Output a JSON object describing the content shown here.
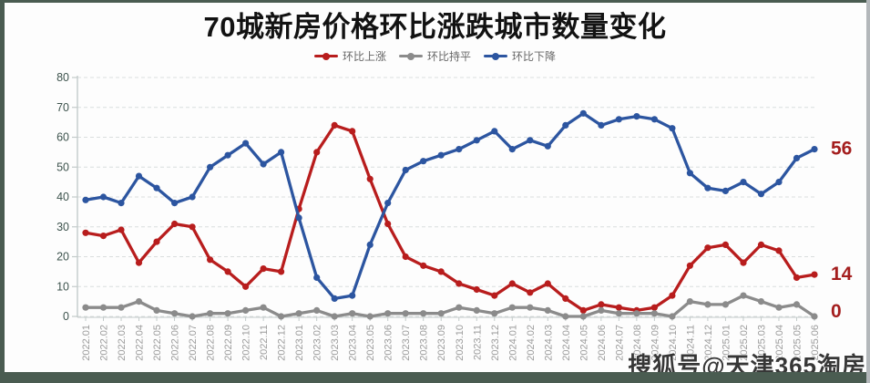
{
  "title": "70城新房价格环比涨跌城市数量变化",
  "watermark": "搜狐号@天津365淘房",
  "colors": {
    "frame_green": "#4a5c51",
    "frame_right_gray": "#b3b7ba",
    "grid": "#dadede",
    "axis": "#c3cbca",
    "y_label": "#3d534d",
    "x_label": "#9b9b9b",
    "end_label": "#a41e1e",
    "title_text": "#121212",
    "legend_text": "#676767"
  },
  "chart_data": {
    "type": "line",
    "title": "70城新房价格环比涨跌城市数量变化",
    "xlabel": "",
    "ylabel": "",
    "ylim": [
      0,
      80
    ],
    "y_step": 10,
    "grid": "dashed-horizontal",
    "legend_position": "top-center",
    "categories": [
      "2022.01",
      "2022.02",
      "2022.03",
      "2022.04",
      "2022.05",
      "2022.06",
      "2022.07",
      "2022.08",
      "2022.09",
      "2022.10",
      "2022.11",
      "2022.12",
      "2023.01",
      "2023.02",
      "2023.03",
      "2023.04",
      "2023.05",
      "2023.06",
      "2023.07",
      "2023.08",
      "2023.09",
      "2023.10",
      "2023.11",
      "2023.12",
      "2024.01",
      "2024.02",
      "2024.03",
      "2024.04",
      "2024.05",
      "2024.06",
      "2024.07",
      "2024.08",
      "2024.09",
      "2024.10",
      "2024.11",
      "2024.12",
      "2025.01",
      "2025.02",
      "2025.03",
      "2025.04",
      "2025.05",
      "2025.06"
    ],
    "series": [
      {
        "name": "环比上涨",
        "color": "#b81d1d",
        "end_label": "14",
        "values": [
          28,
          27,
          29,
          18,
          25,
          31,
          30,
          19,
          15,
          10,
          16,
          15,
          36,
          55,
          64,
          62,
          46,
          31,
          20,
          17,
          15,
          11,
          9,
          7,
          11,
          8,
          11,
          6,
          2,
          4,
          3,
          2,
          3,
          7,
          17,
          23,
          24,
          18,
          24,
          22,
          13,
          14
        ]
      },
      {
        "name": "环比持平",
        "color": "#8b8b8b",
        "end_label": "0",
        "values": [
          3,
          3,
          3,
          5,
          2,
          1,
          0,
          1,
          1,
          2,
          3,
          0,
          1,
          2,
          0,
          1,
          0,
          1,
          1,
          1,
          1,
          3,
          2,
          1,
          3,
          3,
          2,
          0,
          0,
          2,
          1,
          1,
          1,
          0,
          5,
          4,
          4,
          7,
          5,
          3,
          4,
          0
        ]
      },
      {
        "name": "环比下降",
        "color": "#2c55a0",
        "end_label": "56",
        "values": [
          39,
          40,
          38,
          47,
          43,
          38,
          40,
          50,
          54,
          58,
          51,
          55,
          33,
          13,
          6,
          7,
          24,
          38,
          49,
          52,
          54,
          56,
          59,
          62,
          56,
          59,
          57,
          64,
          68,
          64,
          66,
          67,
          66,
          63,
          48,
          43,
          42,
          45,
          41,
          45,
          53,
          56
        ]
      }
    ]
  }
}
